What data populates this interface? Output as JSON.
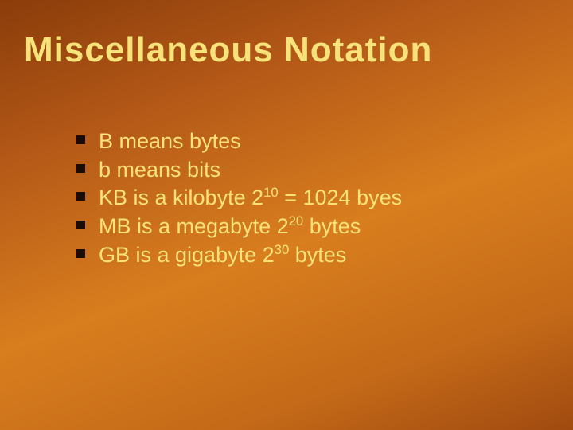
{
  "slide": {
    "title": "Miscellaneous Notation",
    "title_color": "#f7e37a",
    "title_fontsize": 44,
    "title_fontweight": 900,
    "background_gradient": [
      "#8a3c0a",
      "#b35817",
      "#d97e1e",
      "#c46a18",
      "#a04a10"
    ],
    "bullet_color": "#f7e37a",
    "bullet_fontsize": 27,
    "bullet_marker_color": "#1a0b03",
    "bullet_marker_size": 11,
    "bullets": [
      {
        "pre": "B means bytes",
        "sup": "",
        "post": ""
      },
      {
        "pre": "b means bits",
        "sup": "",
        "post": ""
      },
      {
        "pre": "KB is a kilobyte 2",
        "sup": "10",
        "post": " = 1024 byes"
      },
      {
        "pre": "MB is a megabyte 2",
        "sup": "20",
        "post": " bytes"
      },
      {
        "pre": "GB is a gigabyte 2",
        "sup": "30",
        "post": " bytes"
      }
    ]
  }
}
